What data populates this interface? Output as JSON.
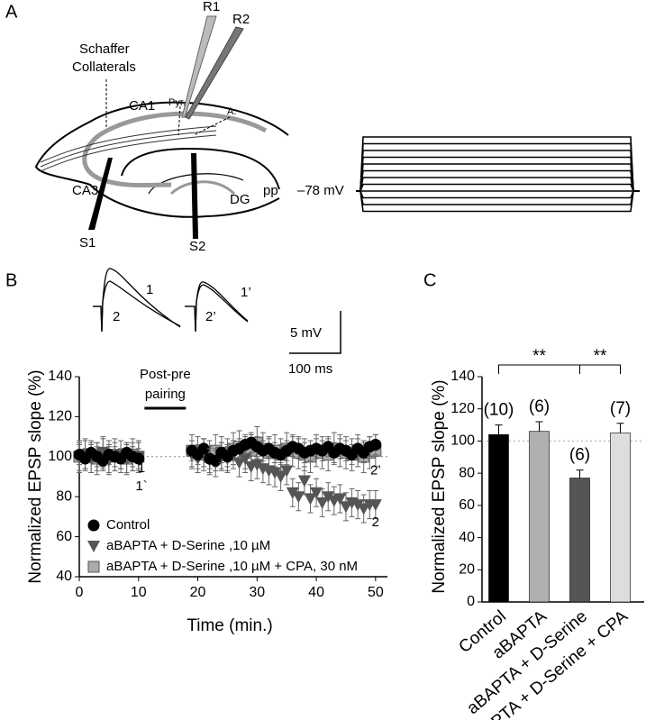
{
  "panels": [
    "A",
    "B",
    "C"
  ],
  "diagram": {
    "electrodes": [
      "R1",
      "R2"
    ],
    "schaffer": [
      "Schaffer",
      "Collaterals"
    ],
    "cells": [
      "Pyr.",
      "A."
    ],
    "regions": [
      "CA1",
      "CA3",
      "DG",
      "pp"
    ],
    "stimulators": [
      "S1",
      "S2"
    ],
    "holding": "–78 mV"
  },
  "traces": {
    "labels": [
      "1",
      "2",
      "1’",
      "2’"
    ],
    "scale_y": "5 mV",
    "scale_x": "100 ms"
  },
  "chart_data": [
    {
      "type": "scatter",
      "xlabel": "Time (min.)",
      "ylabel": "Normalized EPSP slope (%)",
      "x": [
        0,
        1,
        2,
        3,
        4,
        5,
        6,
        7,
        8,
        9,
        10,
        19,
        20,
        21,
        22,
        23,
        24,
        25,
        26,
        27,
        28,
        29,
        30,
        31,
        32,
        33,
        34,
        35,
        36,
        37,
        38,
        39,
        40,
        41,
        42,
        43,
        44,
        45,
        46,
        47,
        48,
        49,
        50
      ],
      "series": [
        {
          "name": "Control",
          "color": "#000000",
          "marker": "circle",
          "error": 5,
          "values": [
            101,
            99,
            102,
            100,
            98,
            101,
            100,
            99,
            102,
            100,
            99,
            103,
            101,
            104,
            99,
            98,
            102,
            100,
            103,
            104,
            106,
            107,
            105,
            103,
            104,
            102,
            101,
            103,
            105,
            104,
            102,
            103,
            104,
            103,
            105,
            102,
            104,
            103,
            101,
            104,
            102,
            105,
            106
          ]
        },
        {
          "name": "aBAPTA + D-Serine ,10 µM",
          "color": "#555555",
          "marker": "triangle-down",
          "error": 7,
          "values": [
            100,
            101,
            99,
            100,
            102,
            98,
            100,
            101,
            99,
            100,
            100,
            101,
            99,
            102,
            98,
            97,
            100,
            99,
            101,
            97,
            99,
            95,
            96,
            94,
            93,
            92,
            90,
            93,
            82,
            80,
            88,
            79,
            82,
            77,
            80,
            78,
            79,
            75,
            77,
            76,
            74,
            76,
            76
          ]
        },
        {
          "name": "aBAPTA + D-Serine ,10 µM + CPA, 30 nM",
          "color": "#aaaaaa",
          "marker": "square",
          "error": 8,
          "values": [
            100,
            101,
            100,
            99,
            102,
            100,
            101,
            100,
            99,
            101,
            100,
            103,
            102,
            101,
            100,
            103,
            102,
            101,
            104,
            105,
            102,
            103,
            107,
            104,
            102,
            103,
            101,
            104,
            103,
            102,
            101,
            100,
            103,
            102,
            101,
            104,
            103,
            102,
            101,
            103,
            100,
            102,
            103
          ]
        }
      ],
      "xlim": [
        0,
        52
      ],
      "xticks": [
        0,
        10,
        20,
        30,
        40,
        50
      ],
      "ylim": [
        40,
        140
      ],
      "yticks": [
        40,
        60,
        80,
        100,
        120,
        140
      ],
      "reference": 100,
      "pairing": {
        "label": [
          "Post-pre",
          "pairing"
        ],
        "x": [
          11,
          18
        ]
      },
      "annotations": [
        {
          "text": "1",
          "x": 10.5,
          "y": 94
        },
        {
          "text": "1`",
          "x": 10.5,
          "y": 85
        },
        {
          "text": "2’",
          "x": 50,
          "y": 93
        },
        {
          "text": "2",
          "x": 50,
          "y": 67
        }
      ],
      "legend": "lower left"
    },
    {
      "type": "bar",
      "ylabel": "Normalized EPSP slope (%)",
      "categories": [
        "Control",
        "aBAPTA",
        "aBAPTA + D-Serine",
        "aBAPTA + D-Serine + CPA"
      ],
      "values": [
        104,
        106,
        77,
        105
      ],
      "errors": [
        6,
        6,
        5,
        6
      ],
      "colors": [
        "#000000",
        "#b0b0b0",
        "#555555",
        "#dddddd"
      ],
      "n_labels": [
        "(10)",
        "(6)",
        "(6)",
        "(7)"
      ],
      "significance": [
        {
          "from": 0,
          "to": 2,
          "label": "**"
        },
        {
          "from": 2,
          "to": 3,
          "label": "**"
        }
      ],
      "reference": 100,
      "ylim": [
        0,
        140
      ],
      "yticks": [
        0,
        20,
        40,
        60,
        80,
        100,
        120,
        140
      ]
    }
  ]
}
